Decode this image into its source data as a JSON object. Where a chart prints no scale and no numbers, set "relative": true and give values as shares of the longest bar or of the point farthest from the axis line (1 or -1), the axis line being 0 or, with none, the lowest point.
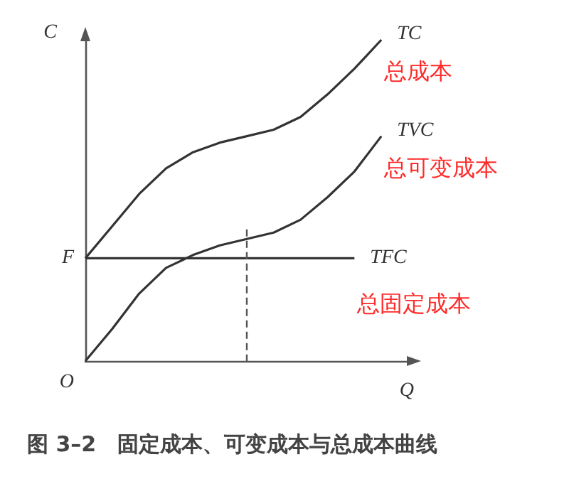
{
  "chart_data": {
    "type": "line",
    "title": "图 3–2　固定成本、可变成本与总成本曲线",
    "xlabel": "Q",
    "ylabel": "C",
    "relative": true,
    "grid": false,
    "legend": false,
    "marker": "none",
    "categories": [
      null,
      null,
      null,
      null,
      null,
      null,
      null,
      null,
      null,
      null,
      null,
      null
    ],
    "series": [
      {
        "name": "TC",
        "color": "#333333",
        "values": [
          0.32,
          0.42,
          0.52,
          0.6,
          0.65,
          0.68,
          0.7,
          0.72,
          0.76,
          0.83,
          0.91,
          1
        ]
      },
      {
        "name": "TVC",
        "color": "#333333",
        "values": [
          0,
          0.1,
          0.21,
          0.29,
          0.33,
          0.36,
          0.38,
          0.4,
          0.44,
          0.51,
          0.59,
          0.7
        ]
      },
      {
        "name": "TFC",
        "color": "#333333",
        "values": [
          0.32,
          0.32,
          0.32,
          0.32,
          0.32,
          0.32,
          0.32,
          0.32,
          0.32,
          0.32,
          0.32,
          null
        ]
      }
    ],
    "annotations": [
      "O",
      "F",
      "总成本",
      "总可变成本",
      "总固定成本"
    ]
  }
}
